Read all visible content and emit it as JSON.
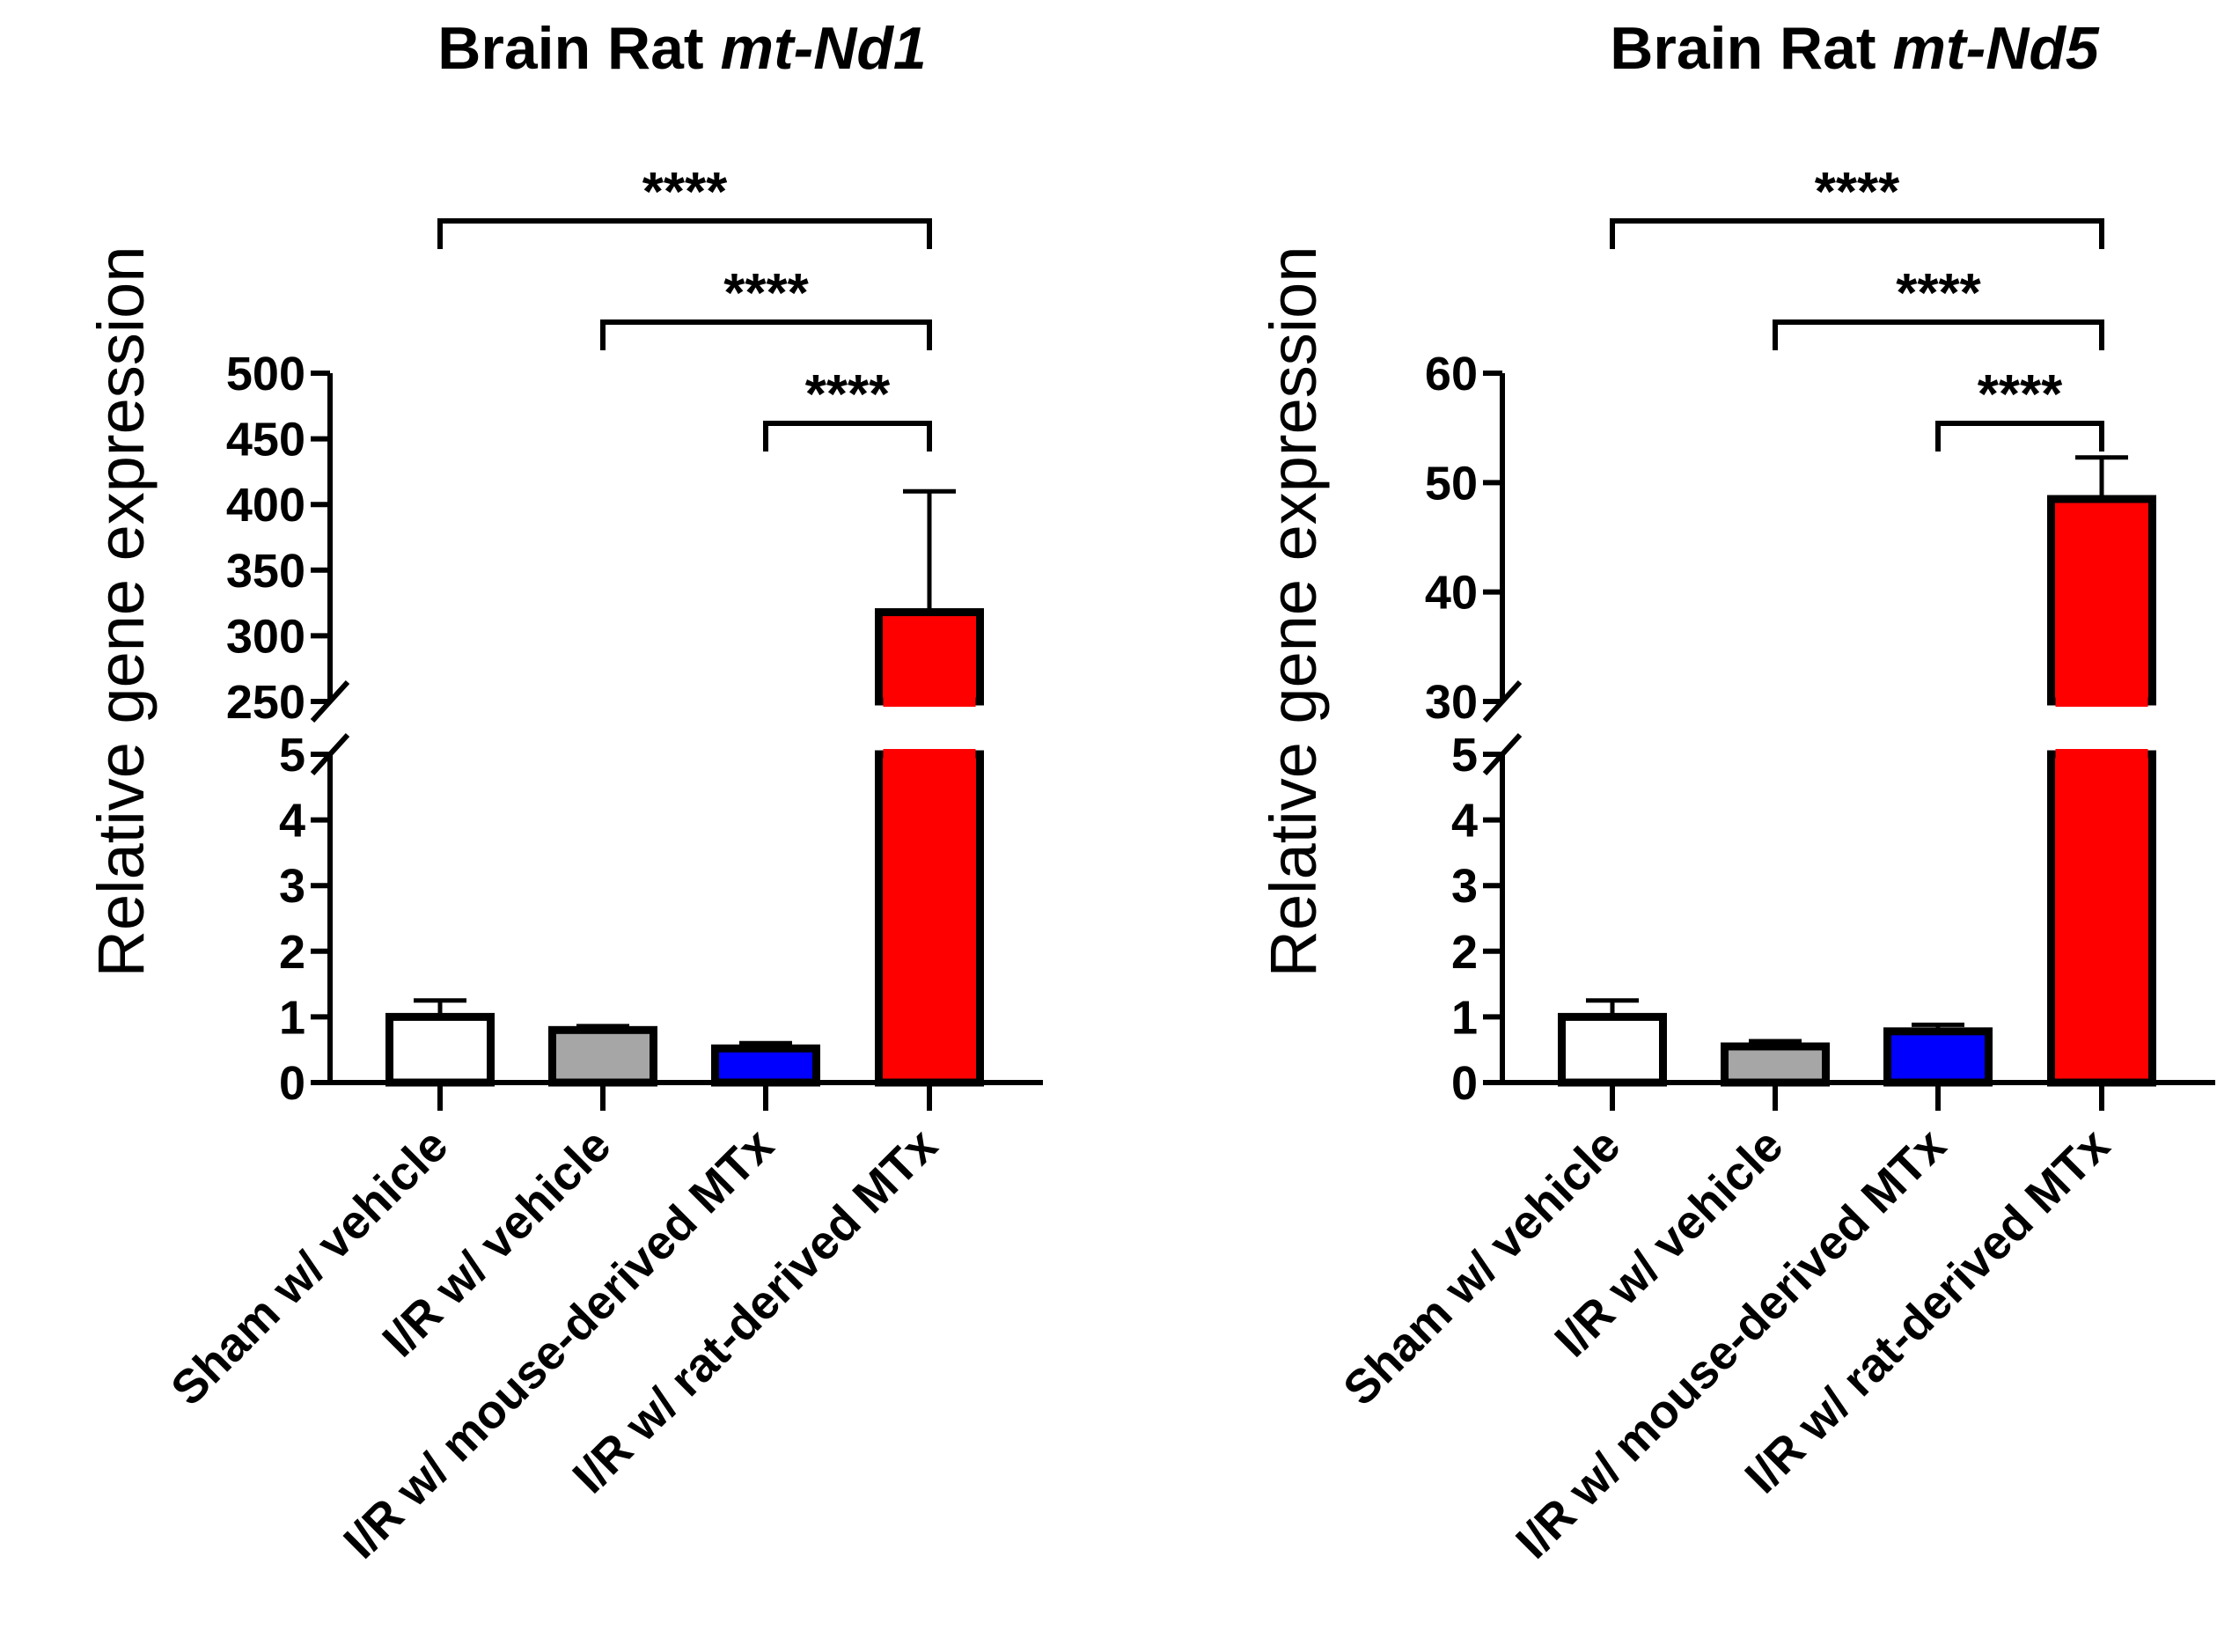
{
  "chart_data": [
    {
      "type": "bar",
      "title_prefix": "Brain Rat ",
      "title_gene": "mt-Nd1",
      "ylabel": "Relative gene expression",
      "xlabel": "",
      "categories": [
        "Sham w/ vehicle",
        "I/R w/ vehicle",
        "I/R w/ mouse-derived MTx",
        "I/R w/ rat-derived MTx"
      ],
      "values": [
        1.0,
        0.8,
        0.52,
        318
      ],
      "errors": [
        0.25,
        0.06,
        0.08,
        92
      ],
      "colors": [
        "#ffffff",
        "#a6a6a6",
        "#0000ff",
        "#ff0000"
      ],
      "lower_segment": {
        "range": [
          0,
          5
        ],
        "ticks": [
          "0",
          "1",
          "2",
          "3",
          "4",
          "5"
        ],
        "tick_values": [
          0,
          1,
          2,
          3,
          4,
          5
        ]
      },
      "upper_segment": {
        "range": [
          250,
          500
        ],
        "ticks": [
          "250",
          "300",
          "350",
          "400",
          "450",
          "500"
        ],
        "tick_values": [
          250,
          300,
          350,
          400,
          450,
          500
        ]
      },
      "comparisons": [
        {
          "from": 0,
          "to": 3,
          "label": "****"
        },
        {
          "from": 1,
          "to": 3,
          "label": "****"
        },
        {
          "from": 2,
          "to": 3,
          "label": "****"
        }
      ]
    },
    {
      "type": "bar",
      "title_prefix": "Brain Rat ",
      "title_gene": "mt-Nd5",
      "ylabel": "Relative gene expression",
      "xlabel": "",
      "categories": [
        "Sham w/ vehicle",
        "I/R w/ vehicle",
        "I/R w/ mouse-derived MTx",
        "I/R w/ rat-derived MTx"
      ],
      "values": [
        1.0,
        0.55,
        0.78,
        48.5
      ],
      "errors": [
        0.25,
        0.08,
        0.1,
        3.8
      ],
      "colors": [
        "#ffffff",
        "#a6a6a6",
        "#0000ff",
        "#ff0000"
      ],
      "lower_segment": {
        "range": [
          0,
          5
        ],
        "ticks": [
          "0",
          "1",
          "2",
          "3",
          "4",
          "5"
        ],
        "tick_values": [
          0,
          1,
          2,
          3,
          4,
          5
        ]
      },
      "upper_segment": {
        "range": [
          30,
          60
        ],
        "ticks": [
          "30",
          "40",
          "50",
          "60"
        ],
        "tick_values": [
          30,
          40,
          50,
          60
        ]
      },
      "comparisons": [
        {
          "from": 0,
          "to": 3,
          "label": "****"
        },
        {
          "from": 1,
          "to": 3,
          "label": "****"
        },
        {
          "from": 2,
          "to": 3,
          "label": "****"
        }
      ]
    }
  ]
}
